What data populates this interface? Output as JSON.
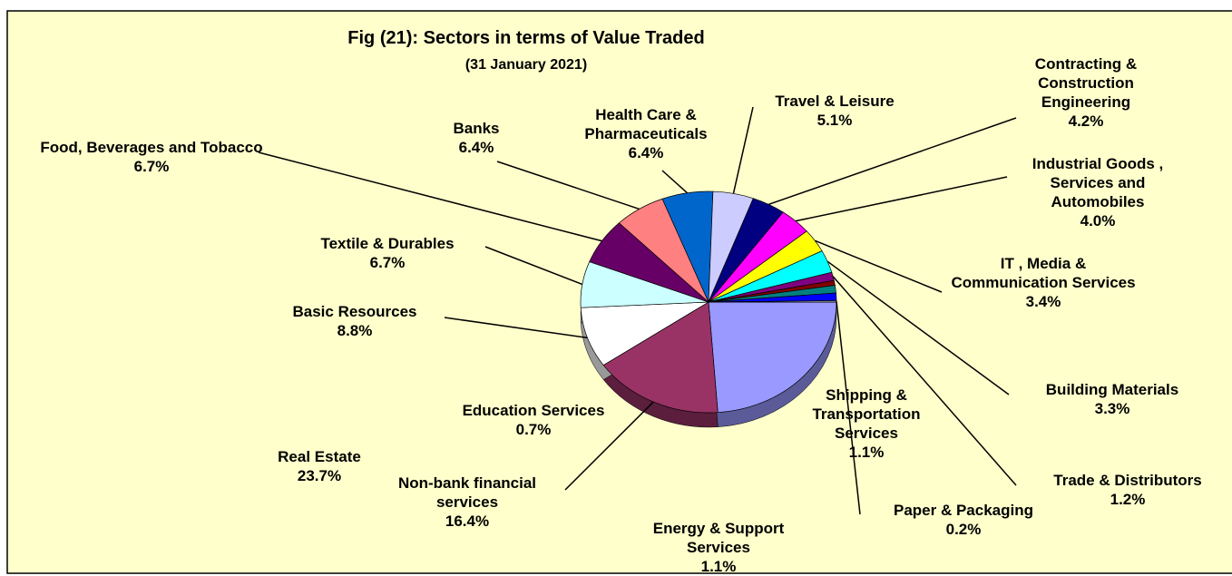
{
  "chart_data": {
    "type": "pie",
    "title": "Fig (21): Sectors in terms of Value Traded",
    "subtitle": "(31 January 2021)",
    "categories": [
      "Real Estate",
      "Non-bank financial services",
      "Basic Resources",
      "Textile & Durables",
      "Food, Beverages and Tobacco",
      "Banks",
      "Health Care & Pharmaceuticals",
      "Travel & Leisure",
      "Contracting & Construction Engineering",
      "Industrial Goods , Services and Automobiles",
      "IT , Media & Communication Services",
      "Building Materials",
      "Trade & Distributors",
      "Education Services",
      "Shipping & Transportation Services",
      "Energy & Support Services",
      "Paper & Packaging"
    ],
    "values": [
      23.7,
      16.4,
      8.8,
      6.7,
      6.7,
      6.4,
      6.4,
      5.1,
      4.2,
      4.0,
      3.4,
      3.3,
      1.2,
      0.7,
      1.1,
      1.1,
      0.2
    ],
    "value_labels": [
      "23.7%",
      "16.4%",
      "8.8%",
      "6.7%",
      "6.7%",
      "6.4%",
      "6.4%",
      "5.1%",
      "4.2%",
      "4.0%",
      "3.4%",
      "3.3%",
      "1.2%",
      "0.7%",
      "1.1%",
      "1.1%",
      "0.2%"
    ],
    "colors": [
      "#9999ff",
      "#993366",
      "#ffffff",
      "#ccffff",
      "#660066",
      "#ff8080",
      "#0066cc",
      "#ccccff",
      "#000080",
      "#ff00ff",
      "#ffff00",
      "#00ffff",
      "#800080",
      "#800000",
      "#008080",
      "#0000ff",
      "#c0c0c0"
    ]
  }
}
